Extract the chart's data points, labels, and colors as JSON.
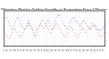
{
  "title": "Milwaukee Weather Outdoor Humidity vs Temperature Every 5 Minutes",
  "title_fontsize": 3.2,
  "blue_color": "#0000cc",
  "red_color": "#cc0000",
  "background_color": "#ffffff",
  "grid_color": "#aaaaaa",
  "ylim_left": [
    0,
    100
  ],
  "n_points": 150,
  "seed": 7,
  "humidity_data": [
    78,
    80,
    82,
    80,
    75,
    70,
    65,
    60,
    55,
    50,
    48,
    50,
    55,
    60,
    65,
    70,
    75,
    80,
    82,
    80,
    78,
    75,
    70,
    65,
    60,
    58,
    55,
    52,
    50,
    48,
    50,
    55,
    60,
    65,
    70,
    72,
    70,
    65,
    60,
    55,
    50,
    45,
    40,
    35,
    30,
    28,
    30,
    35,
    40,
    45,
    50,
    55,
    60,
    62,
    60,
    58,
    55,
    52,
    50,
    52,
    55,
    60,
    65,
    70,
    72,
    70,
    65,
    60,
    55,
    50,
    48,
    50,
    55,
    60,
    65,
    70,
    75,
    80,
    82,
    85,
    88,
    90,
    88,
    85,
    80,
    75,
    70,
    65,
    62,
    60,
    58,
    55,
    52,
    50,
    52,
    55,
    60,
    65,
    70,
    75,
    78,
    80,
    82,
    80,
    78,
    75,
    72,
    70,
    68,
    65,
    62,
    60,
    58,
    60,
    62,
    65,
    68,
    70,
    72,
    70,
    68,
    65,
    62,
    60,
    58,
    55,
    52,
    50,
    48,
    50,
    52,
    55,
    58,
    60,
    62,
    60,
    58,
    55,
    52,
    50,
    48,
    46,
    45,
    46,
    48,
    50,
    52,
    55,
    58,
    60
  ],
  "temperature_data": [
    20,
    18,
    15,
    12,
    10,
    8,
    10,
    12,
    15,
    18,
    20,
    22,
    25,
    28,
    30,
    28,
    25,
    22,
    20,
    18,
    15,
    12,
    10,
    12,
    15,
    18,
    20,
    22,
    25,
    28,
    30,
    32,
    35,
    38,
    40,
    42,
    40,
    38,
    35,
    32,
    30,
    28,
    25,
    22,
    20,
    22,
    25,
    28,
    30,
    32,
    35,
    38,
    40,
    42,
    45,
    48,
    50,
    48,
    45,
    42,
    40,
    38,
    35,
    32,
    30,
    28,
    25,
    22,
    20,
    22,
    25,
    28,
    30,
    32,
    35,
    38,
    40,
    42,
    40,
    38,
    35,
    32,
    30,
    28,
    25,
    22,
    20,
    18,
    15,
    12,
    10,
    12,
    15,
    18,
    20,
    22,
    25,
    28,
    30,
    32,
    30,
    28,
    25,
    22,
    20,
    18,
    15,
    12,
    10,
    12,
    15,
    18,
    20,
    22,
    25,
    28,
    30,
    32,
    30,
    28,
    25,
    22,
    20,
    22,
    25,
    28,
    30,
    32,
    35,
    38,
    40,
    42,
    40,
    38,
    35,
    32,
    30,
    28,
    25,
    22,
    20,
    18,
    15,
    12,
    10,
    12,
    15,
    18,
    20,
    22
  ]
}
